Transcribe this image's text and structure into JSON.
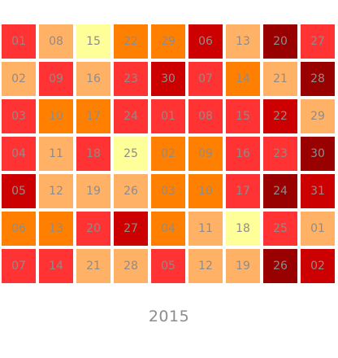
{
  "colors": {
    "L0": "#ffff99",
    "L1": "#ffb266",
    "L2": "#ff8000",
    "L3": "#ff3333",
    "L4": "#cc0000",
    "L5": "#990000",
    "text": "#8c8c8c",
    "background": "#ffffff"
  },
  "chart_data": {
    "type": "heatmap",
    "title": "",
    "year_label": "2015",
    "columns": 9,
    "rows": 7,
    "levels": [
      "L0",
      "L1",
      "L2",
      "L3",
      "L4",
      "L5"
    ],
    "cells": [
      [
        {
          "day": "01",
          "level": "L3"
        },
        {
          "day": "02",
          "level": "L1"
        },
        {
          "day": "03",
          "level": "L3"
        },
        {
          "day": "04",
          "level": "L3"
        },
        {
          "day": "05",
          "level": "L4"
        },
        {
          "day": "06",
          "level": "L2"
        },
        {
          "day": "07",
          "level": "L3"
        }
      ],
      [
        {
          "day": "08",
          "level": "L1"
        },
        {
          "day": "09",
          "level": "L3"
        },
        {
          "day": "10",
          "level": "L2"
        },
        {
          "day": "11",
          "level": "L1"
        },
        {
          "day": "12",
          "level": "L1"
        },
        {
          "day": "13",
          "level": "L2"
        },
        {
          "day": "14",
          "level": "L3"
        }
      ],
      [
        {
          "day": "15",
          "level": "L0"
        },
        {
          "day": "16",
          "level": "L1"
        },
        {
          "day": "17",
          "level": "L2"
        },
        {
          "day": "18",
          "level": "L3"
        },
        {
          "day": "19",
          "level": "L1"
        },
        {
          "day": "20",
          "level": "L3"
        },
        {
          "day": "21",
          "level": "L1"
        }
      ],
      [
        {
          "day": "22",
          "level": "L2"
        },
        {
          "day": "23",
          "level": "L3"
        },
        {
          "day": "24",
          "level": "L3"
        },
        {
          "day": "25",
          "level": "L0"
        },
        {
          "day": "26",
          "level": "L1"
        },
        {
          "day": "27",
          "level": "L4"
        },
        {
          "day": "28",
          "level": "L1"
        }
      ],
      [
        {
          "day": "29",
          "level": "L2"
        },
        {
          "day": "30",
          "level": "L4"
        },
        {
          "day": "01",
          "level": "L3"
        },
        {
          "day": "02",
          "level": "L2"
        },
        {
          "day": "03",
          "level": "L2"
        },
        {
          "day": "04",
          "level": "L2"
        },
        {
          "day": "05",
          "level": "L3"
        }
      ],
      [
        {
          "day": "06",
          "level": "L4"
        },
        {
          "day": "07",
          "level": "L3"
        },
        {
          "day": "08",
          "level": "L3"
        },
        {
          "day": "09",
          "level": "L2"
        },
        {
          "day": "10",
          "level": "L2"
        },
        {
          "day": "11",
          "level": "L1"
        },
        {
          "day": "12",
          "level": "L1"
        }
      ],
      [
        {
          "day": "13",
          "level": "L1"
        },
        {
          "day": "14",
          "level": "L2"
        },
        {
          "day": "15",
          "level": "L3"
        },
        {
          "day": "16",
          "level": "L3"
        },
        {
          "day": "17",
          "level": "L3"
        },
        {
          "day": "18",
          "level": "L0"
        },
        {
          "day": "19",
          "level": "L1"
        }
      ],
      [
        {
          "day": "20",
          "level": "L5"
        },
        {
          "day": "21",
          "level": "L1"
        },
        {
          "day": "22",
          "level": "L4"
        },
        {
          "day": "23",
          "level": "L3"
        },
        {
          "day": "24",
          "level": "L5"
        },
        {
          "day": "25",
          "level": "L3"
        },
        {
          "day": "26",
          "level": "L5"
        }
      ],
      [
        {
          "day": "27",
          "level": "L3"
        },
        {
          "day": "28",
          "level": "L5"
        },
        {
          "day": "29",
          "level": "L1"
        },
        {
          "day": "30",
          "level": "L5"
        },
        {
          "day": "31",
          "level": "L4"
        },
        {
          "day": "01",
          "level": "L1"
        },
        {
          "day": "02",
          "level": "L4"
        }
      ]
    ]
  }
}
